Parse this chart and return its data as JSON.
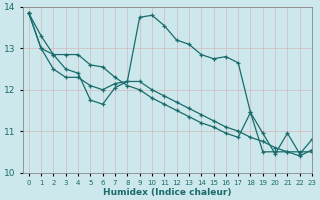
{
  "bg_color": "#cce8ec",
  "grid_color": "#b8d8dc",
  "line_color": "#1a6b6b",
  "xlabel": "Humidex (Indice chaleur)",
  "xlim": [
    -0.5,
    23
  ],
  "ylim": [
    10,
    14
  ],
  "xticks": [
    0,
    1,
    2,
    3,
    4,
    5,
    6,
    7,
    8,
    9,
    10,
    11,
    12,
    13,
    14,
    15,
    16,
    17,
    18,
    19,
    20,
    21,
    22,
    23
  ],
  "yticks": [
    10,
    11,
    12,
    13,
    14
  ],
  "series1": [
    13.85,
    13.3,
    12.85,
    12.5,
    12.4,
    11.75,
    11.65,
    12.05,
    12.2,
    13.75,
    13.8,
    13.55,
    13.2,
    13.1,
    12.85,
    12.75,
    12.8,
    12.65,
    11.45,
    10.95,
    10.45,
    10.95,
    10.45,
    10.8
  ],
  "series2": [
    13.85,
    13.0,
    12.85,
    12.85,
    12.85,
    12.6,
    12.55,
    12.3,
    12.1,
    12.0,
    11.8,
    11.65,
    11.5,
    11.35,
    11.2,
    11.1,
    10.95,
    10.85,
    11.45,
    10.5,
    10.5,
    10.5,
    10.5,
    10.5
  ],
  "series3": [
    13.85,
    13.0,
    12.5,
    12.3,
    12.3,
    12.1,
    12.0,
    12.15,
    12.2,
    12.2,
    12.0,
    11.85,
    11.7,
    11.55,
    11.4,
    11.25,
    11.1,
    11.0,
    10.85,
    10.75,
    10.6,
    10.5,
    10.4,
    10.55
  ]
}
